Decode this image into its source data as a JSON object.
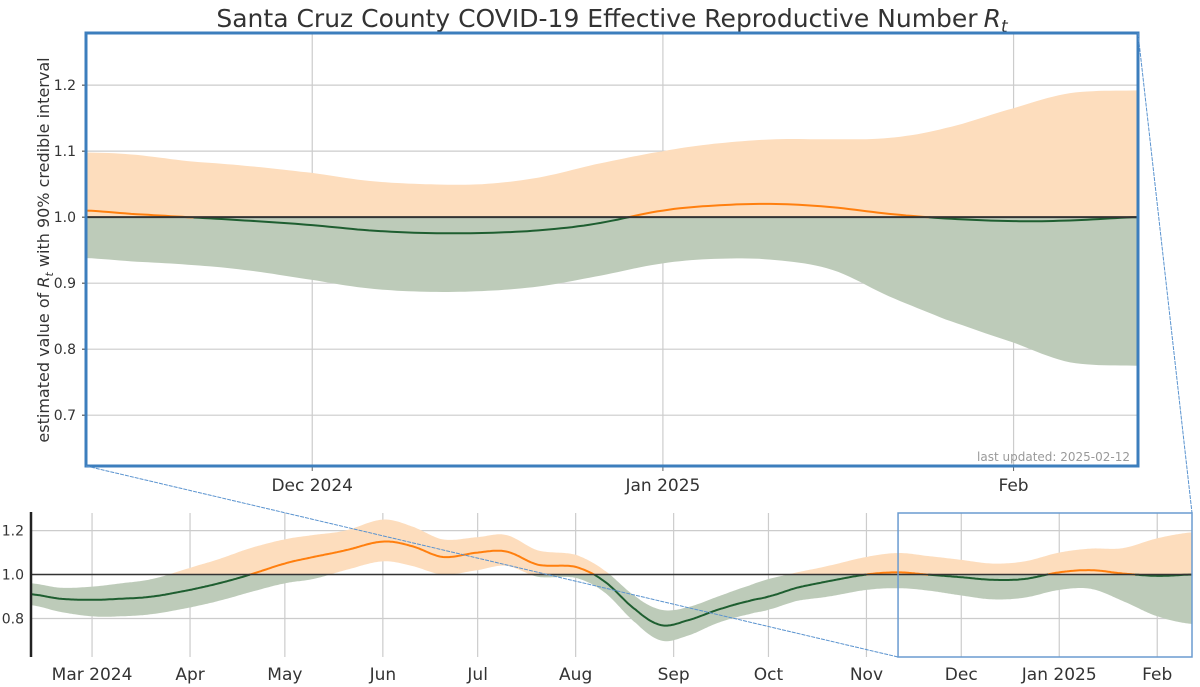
{
  "chart_data": [
    {
      "id": "detail",
      "type": "area",
      "title": "Santa Cruz County COVID-19 Effective Reproductive Number",
      "title_math": "R",
      "title_sub": "t",
      "ylabel_pre": "estimated value of ",
      "ylabel_math": "R",
      "ylabel_sub": "t",
      "ylabel_post": " with 90% credible interval",
      "annotation": "last updated: 2025-02-12",
      "annotation_placement": "bottom-right",
      "x_range": [
        "2024-11-11",
        "2025-02-12"
      ],
      "ylim": [
        0.623,
        1.279
      ],
      "yticks": [
        0.7,
        0.8,
        0.9,
        1.0,
        1.1,
        1.2
      ],
      "ytick_labels": [
        "0.7",
        "0.8",
        "0.9",
        "1.0",
        "1.1",
        "1.2"
      ],
      "xticks": [
        {
          "date": "2024-12-01",
          "label": "Dec 2024"
        },
        {
          "date": "2025-01-01",
          "label": "Jan 2025"
        },
        {
          "date": "2025-02-01",
          "label": "Feb"
        }
      ],
      "reference_line": 1.0,
      "grid": true,
      "series": {
        "dates": [
          "2024-11-11",
          "2024-11-15",
          "2024-11-20",
          "2024-11-25",
          "2024-12-01",
          "2024-12-06",
          "2024-12-11",
          "2024-12-16",
          "2024-12-21",
          "2024-12-26",
          "2025-01-01",
          "2025-01-06",
          "2025-01-11",
          "2025-01-16",
          "2025-01-21",
          "2025-01-26",
          "2025-02-01",
          "2025-02-06",
          "2025-02-12"
        ],
        "rt": [
          1.01,
          1.005,
          1.0,
          0.995,
          0.988,
          0.98,
          0.976,
          0.976,
          0.98,
          0.99,
          1.01,
          1.018,
          1.02,
          1.015,
          1.005,
          0.998,
          0.994,
          0.995,
          1.0
        ],
        "upper": [
          1.098,
          1.095,
          1.085,
          1.078,
          1.067,
          1.055,
          1.05,
          1.05,
          1.06,
          1.08,
          1.1,
          1.112,
          1.118,
          1.118,
          1.12,
          1.135,
          1.165,
          1.188,
          1.192
        ],
        "lower": [
          0.938,
          0.933,
          0.928,
          0.92,
          0.905,
          0.892,
          0.887,
          0.888,
          0.895,
          0.91,
          0.93,
          0.937,
          0.935,
          0.92,
          0.88,
          0.845,
          0.81,
          0.78,
          0.775
        ]
      },
      "colors": {
        "above": "#ff7f0e",
        "below": "#1e5e30",
        "band_above": "#fdddbd",
        "band_below": "#bdcbb9",
        "frame": "#3c7ebd",
        "ref": "#333333"
      }
    },
    {
      "id": "overview",
      "type": "area",
      "x_range": [
        "2024-02-11",
        "2025-02-12"
      ],
      "ylim": [
        0.625,
        1.28
      ],
      "yticks": [
        0.8,
        1.0,
        1.2
      ],
      "ytick_labels": [
        "0.8",
        "1.0",
        "1.2"
      ],
      "xticks": [
        {
          "date": "2024-03-01",
          "label": "Mar 2024"
        },
        {
          "date": "2024-04-01",
          "label": "Apr"
        },
        {
          "date": "2024-05-01",
          "label": "May"
        },
        {
          "date": "2024-06-01",
          "label": "Jun"
        },
        {
          "date": "2024-07-01",
          "label": "Jul"
        },
        {
          "date": "2024-08-01",
          "label": "Aug"
        },
        {
          "date": "2024-09-01",
          "label": "Sep"
        },
        {
          "date": "2024-10-01",
          "label": "Oct"
        },
        {
          "date": "2024-11-01",
          "label": "Nov"
        },
        {
          "date": "2024-12-01",
          "label": "Dec"
        },
        {
          "date": "2025-01-01",
          "label": "Jan 2025"
        },
        {
          "date": "2025-02-01",
          "label": "Feb"
        }
      ],
      "reference_line": 1.0,
      "grid": true,
      "zoom_window": [
        "2024-11-11",
        "2025-02-12"
      ],
      "series": {
        "dates": [
          "2024-02-11",
          "2024-02-20",
          "2024-03-01",
          "2024-03-10",
          "2024-03-20",
          "2024-04-01",
          "2024-04-10",
          "2024-04-20",
          "2024-05-01",
          "2024-05-10",
          "2024-05-20",
          "2024-06-01",
          "2024-06-10",
          "2024-06-20",
          "2024-07-01",
          "2024-07-10",
          "2024-07-20",
          "2024-08-01",
          "2024-08-10",
          "2024-08-20",
          "2024-08-28",
          "2024-09-05",
          "2024-09-15",
          "2024-09-25",
          "2024-10-01",
          "2024-10-10",
          "2024-10-20",
          "2024-11-01",
          "2024-11-11",
          "2024-11-20",
          "2024-12-01",
          "2024-12-11",
          "2024-12-21",
          "2025-01-01",
          "2025-01-11",
          "2025-01-21",
          "2025-02-01",
          "2025-02-12"
        ],
        "rt": [
          0.91,
          0.89,
          0.885,
          0.89,
          0.9,
          0.93,
          0.96,
          1.0,
          1.05,
          1.08,
          1.11,
          1.15,
          1.13,
          1.08,
          1.1,
          1.105,
          1.045,
          1.035,
          0.97,
          0.84,
          0.77,
          0.79,
          0.84,
          0.88,
          0.9,
          0.94,
          0.97,
          1.0,
          1.01,
          1.0,
          0.988,
          0.976,
          0.98,
          1.01,
          1.02,
          1.005,
          0.994,
          1.0
        ],
        "upper": [
          0.96,
          0.94,
          0.945,
          0.96,
          0.98,
          1.03,
          1.07,
          1.12,
          1.16,
          1.18,
          1.2,
          1.25,
          1.22,
          1.16,
          1.17,
          1.18,
          1.11,
          1.09,
          1.02,
          0.9,
          0.84,
          0.85,
          0.9,
          0.95,
          0.98,
          1.01,
          1.04,
          1.08,
          1.098,
          1.085,
          1.067,
          1.05,
          1.06,
          1.1,
          1.118,
          1.12,
          1.165,
          1.192
        ],
        "lower": [
          0.86,
          0.83,
          0.81,
          0.81,
          0.82,
          0.85,
          0.88,
          0.92,
          0.96,
          0.98,
          1.02,
          1.06,
          1.04,
          1.0,
          1.02,
          1.04,
          0.99,
          0.985,
          0.92,
          0.78,
          0.7,
          0.72,
          0.78,
          0.82,
          0.84,
          0.88,
          0.9,
          0.93,
          0.938,
          0.928,
          0.905,
          0.887,
          0.895,
          0.93,
          0.935,
          0.88,
          0.81,
          0.775
        ]
      }
    }
  ]
}
